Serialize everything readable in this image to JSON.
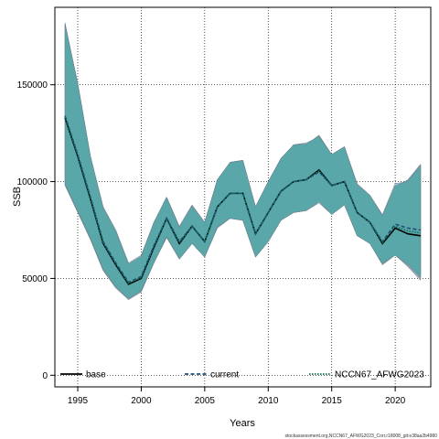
{
  "chart_data": {
    "type": "line",
    "xlabel": "Years",
    "ylabel": "SSB",
    "xlim": [
      1993.2,
      2022.8
    ],
    "ylim": [
      -6000,
      190000
    ],
    "xticks": [
      1995,
      2000,
      2005,
      2010,
      2015,
      2020
    ],
    "yticks": [
      0,
      50000,
      100000,
      150000
    ],
    "grid": true,
    "legend_position": "bottom",
    "footer": "stockassessment.org,NCCN67_AFWG2023_Corr,r18008_git:e38aa2b4980",
    "colors": {
      "band_base": "#8f99ad",
      "band_current": "#7aaecb",
      "band_new": "#4aa5a2",
      "line_base": "#000000",
      "line_current": "#1f4e79",
      "line_new": "#146e5a"
    },
    "series": [
      {
        "name": "base",
        "line": "solid",
        "x": [
          1994,
          1995,
          1996,
          1997,
          1998,
          1999,
          2000,
          2001,
          2002,
          2003,
          2004,
          2005,
          2006,
          2007,
          2008,
          2009,
          2010,
          2011,
          2012,
          2013,
          2014,
          2015,
          2016,
          2017,
          2018,
          2019,
          2020,
          2021,
          2022
        ],
        "values": [
          133000,
          113000,
          91000,
          68000,
          57000,
          47000,
          50000,
          66000,
          81000,
          68000,
          77000,
          69000,
          87000,
          94000,
          94000,
          73000,
          84000,
          95000,
          100000,
          101000,
          106000,
          98000,
          100000,
          84000,
          79000,
          68000,
          76000,
          73000,
          72000
        ],
        "lower": [
          98000,
          84000,
          70000,
          54000,
          45000,
          39000,
          43000,
          58000,
          71000,
          60000,
          68000,
          61000,
          76000,
          81000,
          80000,
          61000,
          69000,
          80000,
          84000,
          85000,
          90000,
          83000,
          88000,
          72000,
          68000,
          57000,
          62000,
          56000,
          49000
        ],
        "upper": [
          182000,
          150000,
          113000,
          86000,
          74000,
          57000,
          61000,
          79000,
          92000,
          76000,
          87000,
          79000,
          101000,
          110000,
          111000,
          87000,
          100000,
          112000,
          119000,
          119000,
          124000,
          114000,
          118000,
          98000,
          93000,
          82000,
          97000,
          101000,
          109000
        ]
      },
      {
        "name": "current",
        "line": "dashed",
        "x": [
          1994,
          1995,
          1996,
          1997,
          1998,
          1999,
          2000,
          2001,
          2002,
          2003,
          2004,
          2005,
          2006,
          2007,
          2008,
          2009,
          2010,
          2011,
          2012,
          2013,
          2014,
          2015,
          2016,
          2017,
          2018,
          2019,
          2020,
          2021,
          2022
        ],
        "values": [
          134000,
          114000,
          92000,
          69000,
          58000,
          48000,
          51000,
          67000,
          81000,
          69000,
          77000,
          69000,
          87000,
          94000,
          94000,
          73000,
          84000,
          95000,
          100000,
          101000,
          105000,
          98000,
          100000,
          84000,
          79000,
          69000,
          78000,
          76000,
          75000
        ],
        "lower": [
          99000,
          85000,
          71000,
          55000,
          46000,
          40000,
          44000,
          58000,
          72000,
          60000,
          68000,
          61000,
          77000,
          81000,
          80000,
          61000,
          69000,
          80000,
          84000,
          85000,
          89000,
          83000,
          88000,
          72000,
          68000,
          58000,
          62000,
          58000,
          52000
        ],
        "upper": [
          181000,
          151000,
          113000,
          87000,
          75000,
          58000,
          62000,
          79000,
          92000,
          77000,
          88000,
          79000,
          101000,
          110000,
          111000,
          87000,
          100000,
          112000,
          119000,
          120000,
          123000,
          114000,
          118000,
          99000,
          93000,
          83000,
          99000,
          100000,
          108000
        ]
      },
      {
        "name": "NCCN67_AFWG2023",
        "line": "dotted",
        "x": [
          1994,
          1995,
          1996,
          1997,
          1998,
          1999,
          2000,
          2001,
          2002,
          2003,
          2004,
          2005,
          2006,
          2007,
          2008,
          2009,
          2010,
          2011,
          2012,
          2013,
          2014,
          2015,
          2016,
          2017,
          2018,
          2019,
          2020,
          2021,
          2022
        ],
        "values": [
          133500,
          113500,
          91500,
          68500,
          57500,
          47500,
          50500,
          66500,
          81000,
          68500,
          77000,
          69000,
          87000,
          94000,
          94000,
          73000,
          84000,
          95000,
          100000,
          101000,
          105500,
          98000,
          100000,
          84000,
          79000,
          68500,
          77000,
          74500,
          73500
        ],
        "lower": [
          98500,
          84500,
          70500,
          54500,
          45500,
          39500,
          43500,
          58000,
          71500,
          60000,
          68000,
          61000,
          76500,
          81000,
          80000,
          61000,
          69000,
          80000,
          84000,
          85000,
          89500,
          83000,
          88000,
          72000,
          68000,
          57500,
          62000,
          57000,
          50500
        ],
        "upper": [
          181500,
          150500,
          113000,
          86500,
          74500,
          57500,
          61500,
          79000,
          92000,
          76500,
          87500,
          79000,
          101000,
          110000,
          111000,
          87000,
          100000,
          112000,
          119000,
          119500,
          123500,
          114000,
          118000,
          98500,
          93000,
          82500,
          98000,
          100500,
          108500
        ]
      }
    ]
  }
}
